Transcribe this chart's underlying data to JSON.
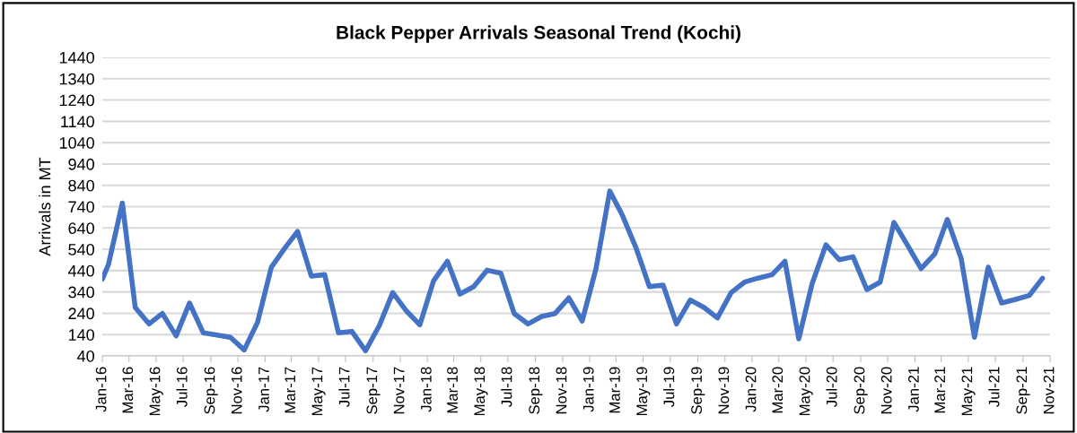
{
  "chart_data": {
    "type": "line",
    "title": "Black Pepper Arrivals Seasonal Trend (Kochi)",
    "ylabel": "Arrivals in MT",
    "x": [
      "2016-01-01",
      "2016-01-15",
      "2016-02-15",
      "2016-03-15",
      "2016-04-15",
      "2016-05-15",
      "2016-06-15",
      "2016-07-15",
      "2016-08-15",
      "2016-09-15",
      "2016-10-15",
      "2016-11-15",
      "2016-12-15",
      "2017-01-15",
      "2017-02-15",
      "2017-03-15",
      "2017-04-15",
      "2017-05-15",
      "2017-06-15",
      "2017-07-15",
      "2017-08-15",
      "2017-09-15",
      "2017-10-15",
      "2017-11-15",
      "2017-12-15",
      "2018-01-15",
      "2018-02-15",
      "2018-03-15",
      "2018-04-15",
      "2018-05-15",
      "2018-06-15",
      "2018-07-15",
      "2018-08-15",
      "2018-09-15",
      "2018-10-15",
      "2018-11-15",
      "2018-12-15",
      "2019-01-15",
      "2019-02-15",
      "2019-03-15",
      "2019-04-15",
      "2019-05-15",
      "2019-06-15",
      "2019-07-15",
      "2019-08-15",
      "2019-09-15",
      "2019-10-15",
      "2019-11-15",
      "2019-12-15",
      "2020-01-15",
      "2020-02-15",
      "2020-03-15",
      "2020-04-15",
      "2020-05-15",
      "2020-06-15",
      "2020-07-15",
      "2020-08-15",
      "2020-09-15",
      "2020-10-15",
      "2020-11-15",
      "2020-12-15",
      "2021-01-15",
      "2021-02-15",
      "2021-03-15",
      "2021-04-15",
      "2021-05-15",
      "2021-06-15",
      "2021-07-15",
      "2021-08-15",
      "2021-09-15",
      "2021-10-15"
    ],
    "series": [
      {
        "color": "#4472c4",
        "values": [
          400,
          470,
          757,
          267,
          190,
          239,
          134,
          288,
          148,
          138,
          127,
          68,
          197,
          456,
          547,
          624,
          414,
          421,
          148,
          155,
          64,
          183,
          337,
          250,
          186,
          393,
          484,
          330,
          365,
          442,
          428,
          239,
          190,
          225,
          239,
          312,
          204,
          449,
          813,
          701,
          547,
          365,
          372,
          190,
          302,
          267,
          218,
          337,
          386,
          405,
          421,
          484,
          120,
          379,
          561,
          491,
          505,
          351,
          386,
          666,
          561,
          449,
          519,
          680,
          498,
          127,
          456,
          288,
          305,
          323,
          404
        ]
      }
    ],
    "xlim": [
      "2016-01-01",
      "2021-11-01"
    ],
    "xticks": [
      {
        "value": "2016-01-01",
        "label": "Jan-16"
      },
      {
        "value": "2016-03-01",
        "label": "Mar-16"
      },
      {
        "value": "2016-05-01",
        "label": "May-16"
      },
      {
        "value": "2016-07-01",
        "label": "Jul-16"
      },
      {
        "value": "2016-09-01",
        "label": "Sep-16"
      },
      {
        "value": "2016-11-01",
        "label": "Nov-16"
      },
      {
        "value": "2017-01-01",
        "label": "Jan-17"
      },
      {
        "value": "2017-03-01",
        "label": "Mar-17"
      },
      {
        "value": "2017-05-01",
        "label": "May-17"
      },
      {
        "value": "2017-07-01",
        "label": "Jul-17"
      },
      {
        "value": "2017-09-01",
        "label": "Sep-17"
      },
      {
        "value": "2017-11-01",
        "label": "Nov-17"
      },
      {
        "value": "2018-01-01",
        "label": "Jan-18"
      },
      {
        "value": "2018-03-01",
        "label": "Mar-18"
      },
      {
        "value": "2018-05-01",
        "label": "May-18"
      },
      {
        "value": "2018-07-01",
        "label": "Jul-18"
      },
      {
        "value": "2018-09-01",
        "label": "Sep-18"
      },
      {
        "value": "2018-11-01",
        "label": "Nov-18"
      },
      {
        "value": "2019-01-01",
        "label": "Jan-19"
      },
      {
        "value": "2019-03-01",
        "label": "Mar-19"
      },
      {
        "value": "2019-05-01",
        "label": "May-19"
      },
      {
        "value": "2019-07-01",
        "label": "Jul-19"
      },
      {
        "value": "2019-09-01",
        "label": "Sep-19"
      },
      {
        "value": "2019-11-01",
        "label": "Nov-19"
      },
      {
        "value": "2020-01-01",
        "label": "Jan-20"
      },
      {
        "value": "2020-03-01",
        "label": "Mar-20"
      },
      {
        "value": "2020-05-01",
        "label": "May-20"
      },
      {
        "value": "2020-07-01",
        "label": "Jul-20"
      },
      {
        "value": "2020-09-01",
        "label": "Sep-20"
      },
      {
        "value": "2020-11-01",
        "label": "Nov-20"
      },
      {
        "value": "2021-01-01",
        "label": "Jan-21"
      },
      {
        "value": "2021-03-01",
        "label": "Mar-21"
      },
      {
        "value": "2021-05-01",
        "label": "May-21"
      },
      {
        "value": "2021-07-01",
        "label": "Jul-21"
      },
      {
        "value": "2021-09-01",
        "label": "Sep-21"
      },
      {
        "value": "2021-11-01",
        "label": "Nov-21"
      }
    ],
    "ylim": [
      40,
      1440
    ],
    "yticks": [
      40,
      140,
      240,
      340,
      440,
      540,
      640,
      740,
      840,
      940,
      1040,
      1140,
      1240,
      1340,
      1440
    ],
    "grid": "y",
    "marker": "none",
    "line_style": "solid"
  }
}
